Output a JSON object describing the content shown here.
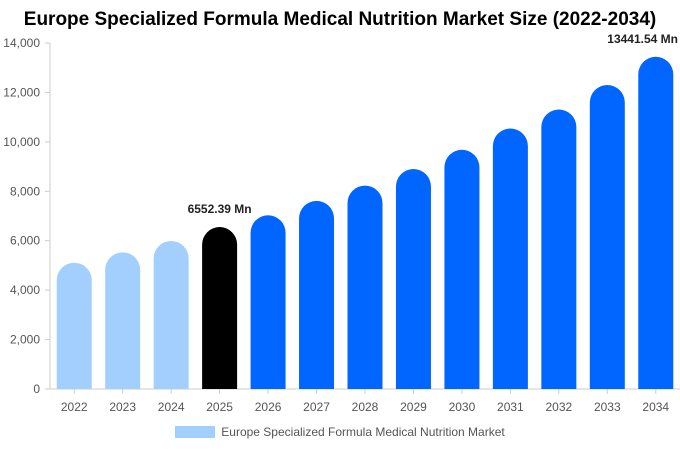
{
  "chart_data": {
    "type": "bar",
    "title": "Europe Specialized Formula Medical Nutrition Market Size (2022-2034)",
    "xlabel": "",
    "ylabel": "",
    "ylim": [
      0,
      14000
    ],
    "yticks": [
      0,
      2000,
      4000,
      6000,
      8000,
      10000,
      12000,
      14000
    ],
    "ytick_labels": [
      "0",
      "2,000",
      "4,000",
      "6,000",
      "8,000",
      "10,000",
      "12,000",
      "14,000"
    ],
    "grid": false,
    "legend_position": "bottom",
    "categories": [
      "2022",
      "2023",
      "2024",
      "2025",
      "2026",
      "2027",
      "2028",
      "2029",
      "2030",
      "2031",
      "2032",
      "2033",
      "2034"
    ],
    "series": [
      {
        "name": "Europe Specialized Formula Medical Nutrition Market",
        "values": [
          5110,
          5530,
          5990,
          6552.39,
          7030,
          7610,
          8230,
          8900,
          9680,
          10540,
          11310,
          12300,
          13441.54
        ],
        "colors": [
          "#a3cfff",
          "#a3cfff",
          "#a3cfff",
          "#000000",
          "#0066ff",
          "#0066ff",
          "#0066ff",
          "#0066ff",
          "#0066ff",
          "#0066ff",
          "#0066ff",
          "#0066ff",
          "#0066ff"
        ]
      }
    ],
    "legend_color": "#a3cfff",
    "annotations": [
      {
        "index": 3,
        "text": "6552.39 Mn"
      },
      {
        "index": 12,
        "text": "13441.54 Mn"
      }
    ]
  }
}
